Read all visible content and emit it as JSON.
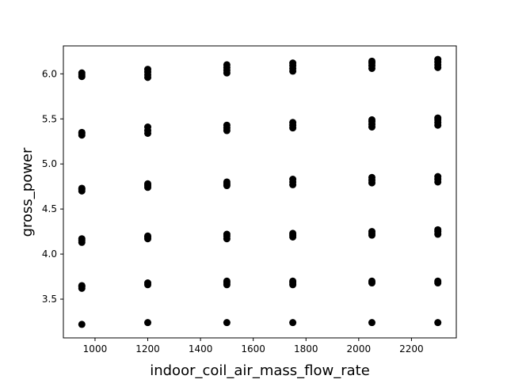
{
  "chart_data": {
    "type": "scatter",
    "title": "",
    "xlabel": "indoor_coil_air_mass_flow_rate",
    "ylabel": "gross_power",
    "xlim": [
      880,
      2370
    ],
    "ylim": [
      3.07,
      6.31
    ],
    "xticks": [
      1000,
      1200,
      1400,
      1600,
      1800,
      2000,
      2200
    ],
    "xtick_labels": [
      "1000",
      "1200",
      "1400",
      "1600",
      "1800",
      "2000",
      "2200"
    ],
    "yticks": [
      3.5,
      4.0,
      4.5,
      5.0,
      5.5,
      6.0
    ],
    "ytick_labels": [
      "3.5",
      "4.0",
      "4.5",
      "5.0",
      "5.5",
      "6.0"
    ],
    "grid": false,
    "legend": false,
    "marker_color": "#000000",
    "series": [
      {
        "points": [
          [
            950,
            3.22
          ],
          [
            950,
            3.62
          ],
          [
            950,
            3.64
          ],
          [
            950,
            3.65
          ],
          [
            950,
            4.13
          ],
          [
            950,
            4.15
          ],
          [
            950,
            4.17
          ],
          [
            950,
            4.7
          ],
          [
            950,
            4.72
          ],
          [
            950,
            4.73
          ],
          [
            950,
            5.32
          ],
          [
            950,
            5.34
          ],
          [
            950,
            5.35
          ],
          [
            950,
            5.97
          ],
          [
            950,
            5.99
          ],
          [
            950,
            6.01
          ],
          [
            1200,
            3.24
          ],
          [
            1200,
            3.66
          ],
          [
            1200,
            3.68
          ],
          [
            1200,
            4.17
          ],
          [
            1200,
            4.19
          ],
          [
            1200,
            4.2
          ],
          [
            1200,
            4.74
          ],
          [
            1200,
            4.76
          ],
          [
            1200,
            4.78
          ],
          [
            1200,
            5.34
          ],
          [
            1200,
            5.37
          ],
          [
            1200,
            5.41
          ],
          [
            1200,
            5.96
          ],
          [
            1200,
            5.99
          ],
          [
            1200,
            6.02
          ],
          [
            1200,
            6.05
          ],
          [
            1500,
            3.24
          ],
          [
            1500,
            3.66
          ],
          [
            1500,
            3.68
          ],
          [
            1500,
            3.7
          ],
          [
            1500,
            4.17
          ],
          [
            1500,
            4.2
          ],
          [
            1500,
            4.22
          ],
          [
            1500,
            4.76
          ],
          [
            1500,
            4.78
          ],
          [
            1500,
            4.8
          ],
          [
            1500,
            5.37
          ],
          [
            1500,
            5.4
          ],
          [
            1500,
            5.43
          ],
          [
            1500,
            6.01
          ],
          [
            1500,
            6.04
          ],
          [
            1500,
            6.07
          ],
          [
            1500,
            6.1
          ],
          [
            1750,
            3.24
          ],
          [
            1750,
            3.66
          ],
          [
            1750,
            3.68
          ],
          [
            1750,
            3.7
          ],
          [
            1750,
            4.19
          ],
          [
            1750,
            4.21
          ],
          [
            1750,
            4.23
          ],
          [
            1750,
            4.77
          ],
          [
            1750,
            4.8
          ],
          [
            1750,
            4.83
          ],
          [
            1750,
            5.4
          ],
          [
            1750,
            5.43
          ],
          [
            1750,
            5.46
          ],
          [
            1750,
            6.03
          ],
          [
            1750,
            6.06
          ],
          [
            1750,
            6.09
          ],
          [
            1750,
            6.12
          ],
          [
            2050,
            3.24
          ],
          [
            2050,
            3.68
          ],
          [
            2050,
            3.7
          ],
          [
            2050,
            4.21
          ],
          [
            2050,
            4.23
          ],
          [
            2050,
            4.25
          ],
          [
            2050,
            4.79
          ],
          [
            2050,
            4.82
          ],
          [
            2050,
            4.85
          ],
          [
            2050,
            5.41
          ],
          [
            2050,
            5.44
          ],
          [
            2050,
            5.47
          ],
          [
            2050,
            5.49
          ],
          [
            2050,
            6.06
          ],
          [
            2050,
            6.09
          ],
          [
            2050,
            6.12
          ],
          [
            2050,
            6.14
          ],
          [
            2300,
            3.24
          ],
          [
            2300,
            3.68
          ],
          [
            2300,
            3.7
          ],
          [
            2300,
            4.22
          ],
          [
            2300,
            4.25
          ],
          [
            2300,
            4.27
          ],
          [
            2300,
            4.8
          ],
          [
            2300,
            4.83
          ],
          [
            2300,
            4.86
          ],
          [
            2300,
            5.43
          ],
          [
            2300,
            5.46
          ],
          [
            2300,
            5.49
          ],
          [
            2300,
            5.51
          ],
          [
            2300,
            6.07
          ],
          [
            2300,
            6.1
          ],
          [
            2300,
            6.13
          ],
          [
            2300,
            6.16
          ]
        ]
      }
    ]
  }
}
